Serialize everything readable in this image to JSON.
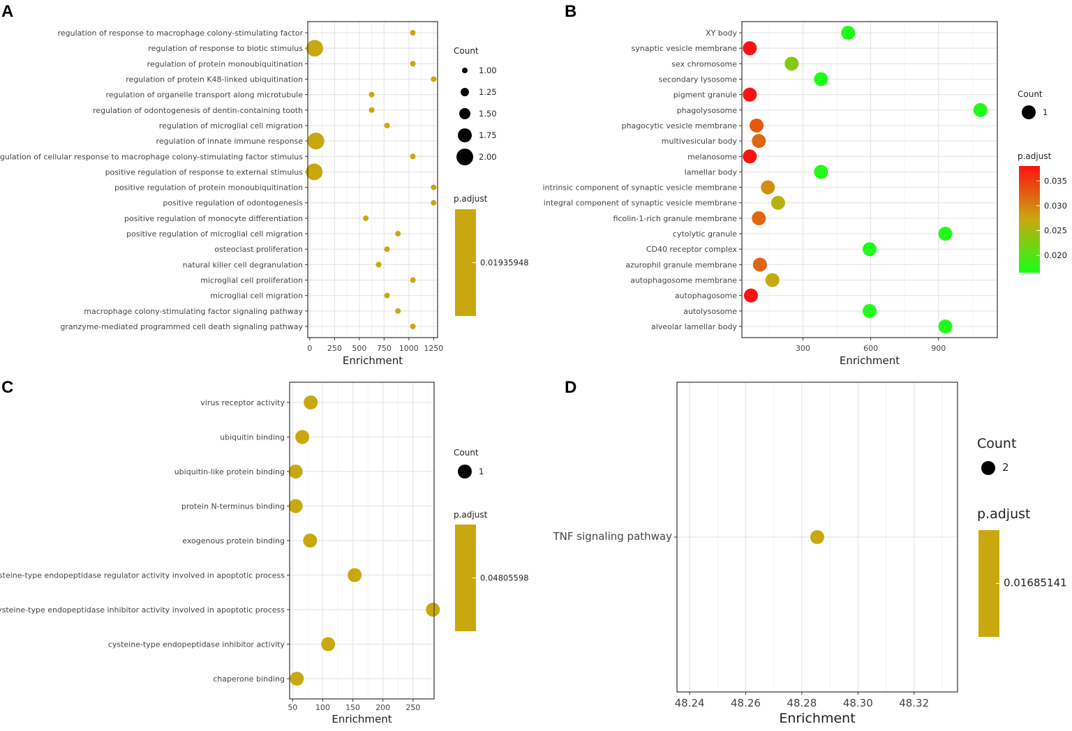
{
  "chart_data": [
    {
      "panel": "A",
      "type": "scatter",
      "xlabel": "Enrichment",
      "xlim": [
        -20,
        1290
      ],
      "xticks": [
        0,
        250,
        500,
        750,
        1000,
        1250
      ],
      "categories": [
        "regulation of response to macrophage colony-stimulating factor",
        "regulation of response to biotic stimulus",
        "regulation of protein monoubiquitination",
        "regulation of protein K48-linked ubiquitination",
        "regulation of organelle transport along microtubule",
        "regulation of odontogenesis of dentin-containing tooth",
        "regulation of microglial cell migration",
        "regulation of innate immune response",
        "regulation of cellular response to macrophage colony-stimulating factor stimulus",
        "positive regulation of response to external stimulus",
        "positive regulation of protein monoubiquitination",
        "positive regulation of odontogenesis",
        "positive regulation of monocyte differentiation",
        "positive regulation of microglial cell migration",
        "osteoclast proliferation",
        "natural killer cell degranulation",
        "microglial cell proliferation",
        "microglial cell migration",
        "macrophage colony-stimulating factor signaling pathway",
        "granzyme-mediated programmed cell death signaling pathway"
      ],
      "x": [
        1040,
        50,
        1040,
        1250,
        625,
        625,
        780,
        62,
        1040,
        45,
        1250,
        1250,
        565,
        890,
        780,
        695,
        1040,
        780,
        890,
        1040
      ],
      "count": [
        1,
        2,
        1,
        1,
        1,
        1,
        1,
        2,
        1,
        2,
        1,
        1,
        1,
        1,
        1,
        1,
        1,
        1,
        1,
        1
      ],
      "p_adjust": [
        0.01935948,
        0.01935948,
        0.01935948,
        0.01935948,
        0.01935948,
        0.01935948,
        0.01935948,
        0.01935948,
        0.01935948,
        0.01935948,
        0.01935948,
        0.01935948,
        0.01935948,
        0.01935948,
        0.01935948,
        0.01935948,
        0.01935948,
        0.01935948,
        0.01935948,
        0.01935948
      ],
      "size_legend_title": "Count",
      "size_legend": [
        "1.00",
        "1.25",
        "1.50",
        "1.75",
        "2.00"
      ],
      "color_legend_title": "p.adjust",
      "color_legend": [
        "0.01935948"
      ],
      "color": "#c9a80f"
    },
    {
      "panel": "B",
      "type": "scatter",
      "xlabel": "Enrichment",
      "xlim": [
        30,
        1160
      ],
      "xticks": [
        300,
        600,
        900
      ],
      "categories": [
        "XY body",
        "synaptic vesicle membrane",
        "sex chromosome",
        "secondary lysosome",
        "pigment granule",
        "phagolysosome",
        "phagocytic vesicle membrane",
        "multivesicular body",
        "melanosome",
        "lamellar body",
        "intrinsic component of synaptic vesicle membrane",
        "integral component of synaptic vesicle membrane",
        "ficolin-1-rich granule membrane",
        "cytolytic granule",
        "CD40 receptor complex",
        "azurophil granule membrane",
        "autophagosome membrane",
        "autophagosome",
        "autolysosome",
        "alveolar lamellar body"
      ],
      "x": [
        500,
        65,
        250,
        380,
        65,
        1085,
        95,
        105,
        65,
        380,
        145,
        190,
        105,
        930,
        595,
        110,
        165,
        70,
        595,
        930
      ],
      "count": [
        1,
        1,
        1,
        1,
        1,
        1,
        1,
        1,
        1,
        1,
        1,
        1,
        1,
        1,
        1,
        1,
        1,
        1,
        1,
        1
      ],
      "p_adjust": [
        0.017,
        0.038,
        0.023,
        0.017,
        0.038,
        0.017,
        0.033,
        0.032,
        0.038,
        0.017,
        0.029,
        0.026,
        0.032,
        0.017,
        0.017,
        0.032,
        0.027,
        0.038,
        0.017,
        0.017
      ],
      "size_legend_title": "Count",
      "size_legend": [
        "1"
      ],
      "color_legend_title": "p.adjust",
      "color_legend": [
        "0.035",
        "0.030",
        "0.025",
        "0.020"
      ],
      "color_legend_values": [
        0.035,
        0.03,
        0.025,
        0.02
      ],
      "color_range": [
        0.0165,
        0.038
      ],
      "color_low": "#19ff19",
      "color_mid": "#c9a80f",
      "color_high": "#ff1111"
    },
    {
      "panel": "C",
      "type": "scatter",
      "xlabel": "Enrichment",
      "xlim": [
        45,
        285
      ],
      "xticks": [
        50,
        100,
        150,
        200,
        250
      ],
      "categories": [
        "virus receptor activity",
        "ubiquitin binding",
        "ubiquitin-like protein binding",
        "protein N-terminus binding",
        "exogenous protein binding",
        "cysteine-type endopeptidase regulator activity involved in apoptotic process",
        "cysteine-type endopeptidase inhibitor activity involved in apoptotic process",
        "cysteine-type endopeptidase inhibitor activity",
        "chaperone binding"
      ],
      "x": [
        80,
        66,
        55,
        55,
        79,
        153,
        283,
        109,
        57
      ],
      "count": [
        1,
        1,
        1,
        1,
        1,
        1,
        1,
        1,
        1
      ],
      "p_adjust": [
        0.04805598,
        0.04805598,
        0.04805598,
        0.04805598,
        0.04805598,
        0.04805598,
        0.04805598,
        0.04805598,
        0.04805598
      ],
      "size_legend_title": "Count",
      "size_legend": [
        "1"
      ],
      "color_legend_title": "p.adjust",
      "color_legend": [
        "0.04805598"
      ],
      "color": "#c9a80f"
    },
    {
      "panel": "D",
      "type": "scatter",
      "xlabel": "Enrichment",
      "xlim": [
        48.2355,
        48.3355
      ],
      "xticks": [
        48.24,
        48.26,
        48.28,
        48.3,
        48.32
      ],
      "xtick_labels": [
        "48.24",
        "48.26",
        "48.28",
        "48.30",
        "48.32"
      ],
      "categories": [
        "TNF signaling pathway"
      ],
      "x": [
        48.2855
      ],
      "count": [
        2
      ],
      "p_adjust": [
        0.01685141
      ],
      "size_legend_title": "Count",
      "size_legend": [
        "2"
      ],
      "color_legend_title": "p.adjust",
      "color_legend": [
        "0.01685141"
      ],
      "color": "#c9a80f"
    }
  ],
  "panel_labels": [
    "A",
    "B",
    "C",
    "D"
  ],
  "colors": {
    "grid": "#e6e6e6",
    "axis": "#333333",
    "panel_bg": "#ffffff"
  }
}
